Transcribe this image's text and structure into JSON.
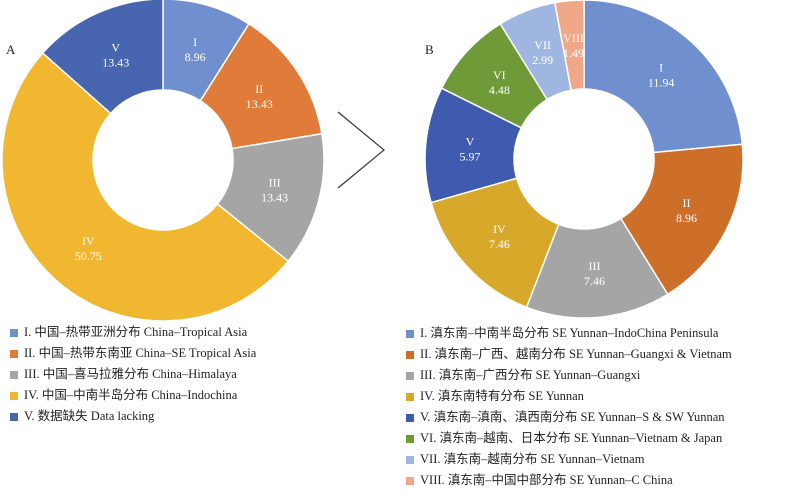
{
  "colors": [
    "#6f8fcf",
    "#e07b39",
    "#a5a5a5",
    "#f2b731",
    "#4866b0",
    "#6e9a38",
    "#9fb7e0",
    "#f0a788"
  ],
  "colors_b": [
    "#6f8fcf",
    "#cd6f28",
    "#a5a5a5",
    "#d8a82a",
    "#3f5bb0",
    "#6e9a38",
    "#9fb7e0",
    "#f0a788"
  ],
  "chart_data": [
    {
      "type": "pie",
      "panel": "A",
      "categories": [
        "I",
        "II",
        "III",
        "IV",
        "V"
      ],
      "values": [
        8.96,
        13.43,
        13.43,
        50.75,
        13.43
      ],
      "legend": [
        "I. 中国–热带亚洲分布 China–Tropical Asia",
        "II. 中国–热带东南亚 China–SE Tropical Asia",
        "III. 中国–喜马拉雅分布 China–Himalaya",
        "IV. 中国–中南半岛分布 China–Indochina",
        "V. 数据缺失 Data lacking"
      ]
    },
    {
      "type": "pie",
      "panel": "B",
      "categories": [
        "I",
        "II",
        "III",
        "IV",
        "V",
        "VI",
        "VII",
        "VIII"
      ],
      "values": [
        11.94,
        8.96,
        7.46,
        7.46,
        5.97,
        4.48,
        2.99,
        1.49
      ],
      "legend": [
        "I. 滇东南–中南半岛分布 SE Yunnan–IndoChina Peninsula",
        "II. 滇东南–广西、越南分布 SE Yunnan–Guangxi & Vietnam",
        "III. 滇东南–广西分布 SE Yunnan–Guangxi",
        "IV. 滇东南特有分布 SE Yunnan",
        "V. 滇东南–滇南、滇西南分布 SE Yunnan–S & SW Yunnan",
        "VI. 滇东南–越南、日本分布 SE Yunnan–Vietnam & Japan",
        "VII. 滇东南–越南分布 SE Yunnan–Vietnam",
        "VIII. 滇东南–中国中部分布 SE Yunnan–C China"
      ]
    }
  ]
}
